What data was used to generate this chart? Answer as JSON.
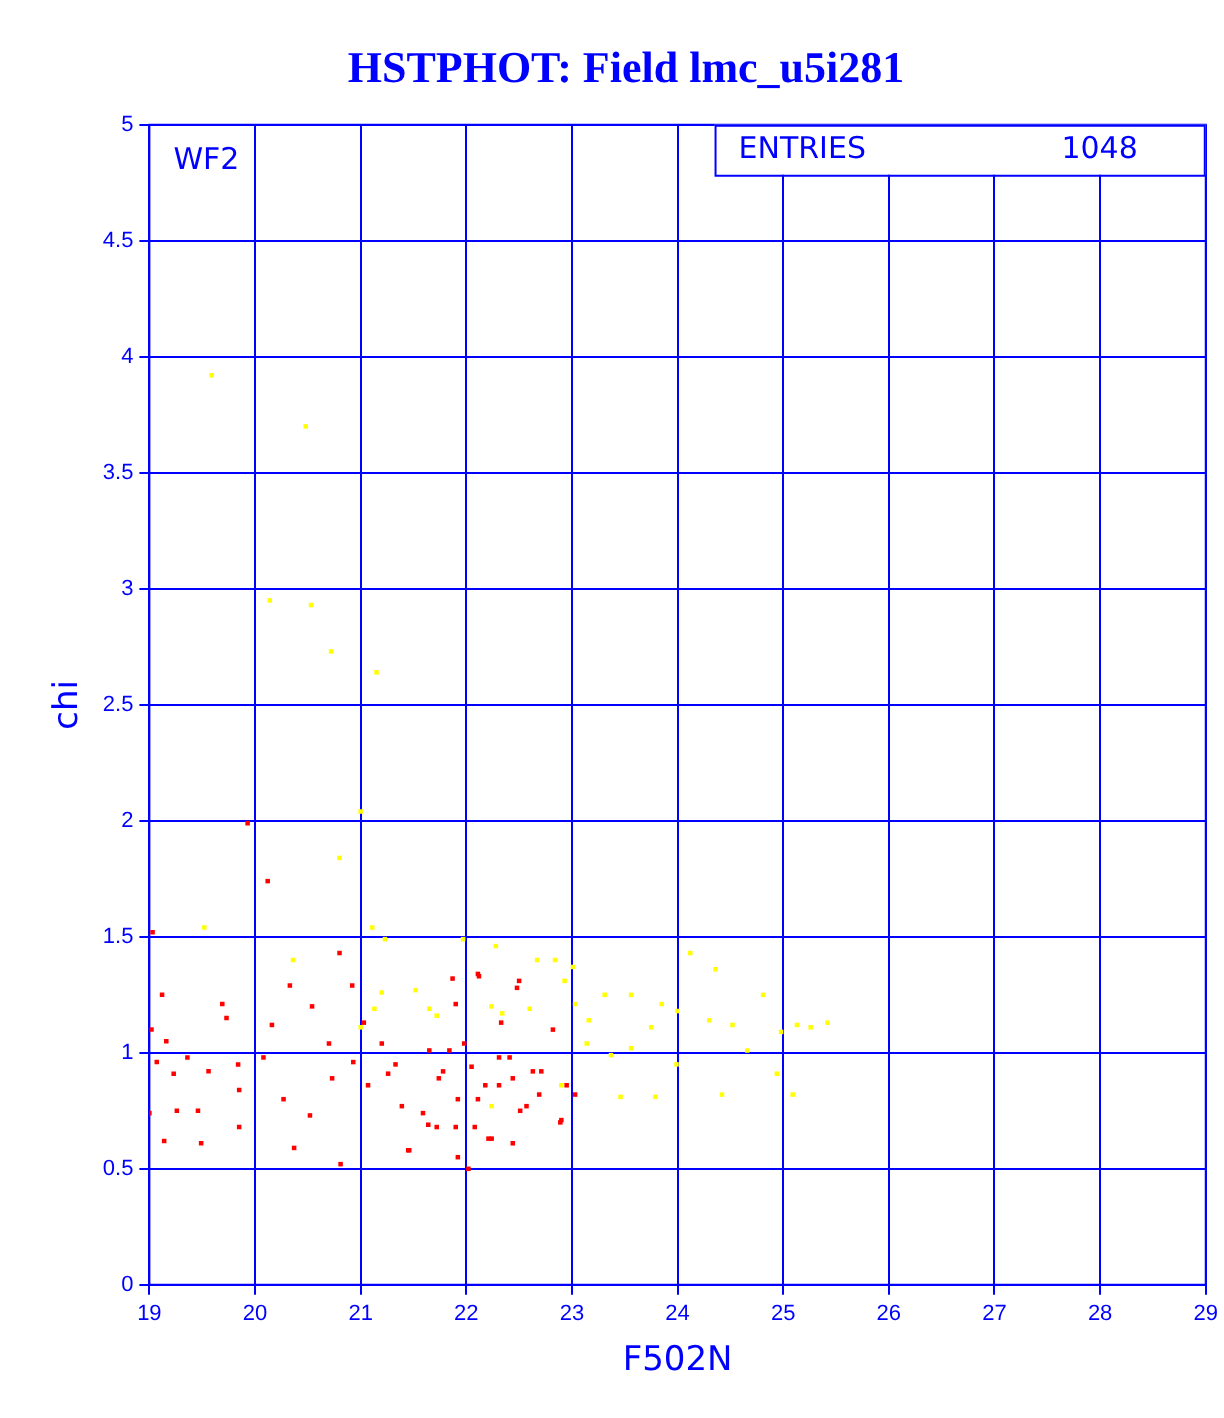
{
  "chart_data": {
    "type": "scatter",
    "title": "HSTPHOT: Field lmc_u5i281",
    "xlabel": "F502N",
    "ylabel": "chi",
    "xlim": [
      19,
      29
    ],
    "ylim": [
      0,
      5
    ],
    "xticks": [
      19,
      20,
      21,
      22,
      23,
      24,
      25,
      26,
      27,
      28,
      29
    ],
    "yticks": [
      0,
      0.5,
      1,
      1.5,
      2,
      2.5,
      3,
      3.5,
      4,
      4.5,
      5
    ],
    "grid": true,
    "legend": false,
    "marker": "square",
    "annotations": [
      "WF2",
      "ENTRIES",
      "1048"
    ],
    "series": [
      {
        "color": "#ff0000",
        "x": [
          19.93,
          20.12,
          19.03,
          20.8,
          19.12,
          19.69,
          20.33,
          20.54,
          20.92,
          21.87,
          22.12,
          22.48,
          19.73,
          20.16,
          19.02,
          19.16,
          19.07,
          19.23,
          19.36,
          19.56,
          19.84,
          20.08,
          19.85,
          19.46,
          19.26,
          19.14,
          19.49,
          19.85,
          20.27,
          20.37,
          20.52,
          20.73,
          20.93,
          20.7,
          21.03,
          21.26,
          21.39,
          21.45,
          21.64,
          21.74,
          21.84,
          21.9,
          22.05,
          22.11,
          22.21,
          22.31,
          22.41,
          22.51,
          22.63,
          22.69,
          22.89,
          22.95,
          22.82,
          22.33,
          21.9,
          20.81,
          22.02,
          19.0,
          21.07,
          21.33,
          21.46,
          21.59,
          21.78,
          21.92,
          22.08,
          22.18,
          22.31,
          22.44,
          22.57,
          22.71,
          22.9,
          23.03,
          22.5,
          22.11,
          21.98,
          21.65,
          21.2,
          21.72,
          22.24,
          22.44,
          21.92
        ],
        "values": [
          1.99,
          1.74,
          1.52,
          1.43,
          1.25,
          1.21,
          1.29,
          1.2,
          1.29,
          1.32,
          1.33,
          1.28,
          1.15,
          1.12,
          1.1,
          1.05,
          0.96,
          0.91,
          0.98,
          0.92,
          0.95,
          0.98,
          0.84,
          0.75,
          0.75,
          0.62,
          0.61,
          0.68,
          0.8,
          0.59,
          0.73,
          0.89,
          0.96,
          1.04,
          1.13,
          0.91,
          0.77,
          0.58,
          0.69,
          0.89,
          1.01,
          1.21,
          0.94,
          0.8,
          0.63,
          0.86,
          0.98,
          0.75,
          0.92,
          0.82,
          0.7,
          0.86,
          1.1,
          1.13,
          0.68,
          0.52,
          0.5,
          0.74,
          0.86,
          0.95,
          0.58,
          0.74,
          0.92,
          0.8,
          0.68,
          0.86,
          0.98,
          0.89,
          0.77,
          0.92,
          0.71,
          0.82,
          1.31,
          1.34,
          1.04,
          1.01,
          1.04,
          0.68,
          0.63,
          0.61,
          0.55
        ]
      },
      {
        "color": "#ffff00",
        "x": [
          19.59,
          20.48,
          20.14,
          20.53,
          20.72,
          21.15,
          21.0,
          20.8,
          21.11,
          21.23,
          21.97,
          22.28,
          22.67,
          22.84,
          23.01,
          22.93,
          21.2,
          21.52,
          21.72,
          22.24,
          22.34,
          22.6,
          23.03,
          23.16,
          23.31,
          23.56,
          23.85,
          24.0,
          24.12,
          24.36,
          24.3,
          24.52,
          24.81,
          23.75,
          23.56,
          23.37,
          23.14,
          23.99,
          24.66,
          24.94,
          25.09,
          25.26,
          25.42,
          23.46,
          23.79,
          24.42,
          22.9,
          22.24,
          21.65,
          21.13,
          21.0,
          19.52,
          20.36,
          24.98,
          25.13
        ],
        "values": [
          3.92,
          3.7,
          2.95,
          2.93,
          2.73,
          2.64,
          2.04,
          1.84,
          1.54,
          1.49,
          1.49,
          1.46,
          1.4,
          1.4,
          1.37,
          1.31,
          1.26,
          1.27,
          1.16,
          1.2,
          1.17,
          1.19,
          1.21,
          1.14,
          1.25,
          1.25,
          1.21,
          1.18,
          1.43,
          1.36,
          1.14,
          1.12,
          1.25,
          1.11,
          1.02,
          0.99,
          1.04,
          0.95,
          1.01,
          0.91,
          0.82,
          1.11,
          1.13,
          0.81,
          0.81,
          0.82,
          0.86,
          0.77,
          1.19,
          1.19,
          1.11,
          1.54,
          1.4,
          1.09,
          1.12
        ]
      }
    ]
  }
}
